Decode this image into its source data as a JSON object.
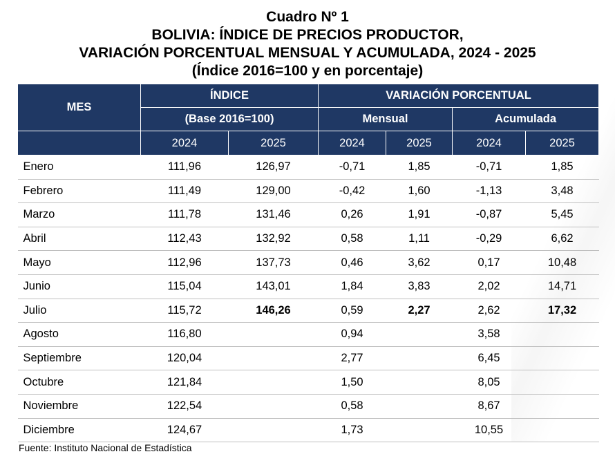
{
  "title": {
    "line1": "Cuadro Nº 1",
    "line2": "BOLIVIA: ÍNDICE DE PRECIOS PRODUCTOR,",
    "line3": "VARIACIÓN PORCENTUAL MENSUAL Y ACUMULADA, 2024 - 2025",
    "line4": "(Índice 2016=100 y en porcentaje)"
  },
  "header": {
    "mes": "MES",
    "indice": "ÍNDICE",
    "base": "(Base 2016=100)",
    "variacion": "VARIACIÓN PORCENTUAL",
    "mensual": "Mensual",
    "acumulada": "Acumulada",
    "years": [
      "2024",
      "2025",
      "2024",
      "2025",
      "2024",
      "2025"
    ]
  },
  "rows": [
    {
      "mes": "Enero",
      "i2024": "111,96",
      "i2025": "126,97",
      "m2024": "-0,71",
      "m2025": "1,85",
      "a2024": "-0,71",
      "a2025": "1,85"
    },
    {
      "mes": "Febrero",
      "i2024": "111,49",
      "i2025": "129,00",
      "m2024": "-0,42",
      "m2025": "1,60",
      "a2024": "-1,13",
      "a2025": "3,48"
    },
    {
      "mes": "Marzo",
      "i2024": "111,78",
      "i2025": "131,46",
      "m2024": "0,26",
      "m2025": "1,91",
      "a2024": "-0,87",
      "a2025": "5,45"
    },
    {
      "mes": "Abril",
      "i2024": "112,43",
      "i2025": "132,92",
      "m2024": "0,58",
      "m2025": "1,11",
      "a2024": "-0,29",
      "a2025": "6,62"
    },
    {
      "mes": "Mayo",
      "i2024": "112,96",
      "i2025": "137,73",
      "m2024": "0,46",
      "m2025": "3,62",
      "a2024": "0,17",
      "a2025": "10,48"
    },
    {
      "mes": "Junio",
      "i2024": "115,04",
      "i2025": "143,01",
      "m2024": "1,84",
      "m2025": "3,83",
      "a2024": "2,02",
      "a2025": "14,71"
    },
    {
      "mes": "Julio",
      "i2024": "115,72",
      "i2025": "146,26",
      "m2024": "0,59",
      "m2025": "2,27",
      "a2024": "2,62",
      "a2025": "17,32"
    },
    {
      "mes": "Agosto",
      "i2024": "116,80",
      "i2025": "",
      "m2024": "0,94",
      "m2025": "",
      "a2024": "3,58",
      "a2025": ""
    },
    {
      "mes": "Septiembre",
      "i2024": "120,04",
      "i2025": "",
      "m2024": "2,77",
      "m2025": "",
      "a2024": "6,45",
      "a2025": ""
    },
    {
      "mes": "Octubre",
      "i2024": "121,84",
      "i2025": "",
      "m2024": "1,50",
      "m2025": "",
      "a2024": "8,05",
      "a2025": ""
    },
    {
      "mes": "Noviembre",
      "i2024": "122,54",
      "i2025": "",
      "m2024": "0,58",
      "m2025": "",
      "a2024": "8,67",
      "a2025": ""
    },
    {
      "mes": "Diciembre",
      "i2024": "124,67",
      "i2025": "",
      "m2024": "1,73",
      "m2025": "",
      "a2024": "10,55",
      "a2025": ""
    }
  ],
  "bold_row_index": 6,
  "footer": {
    "source": "Fuente: Instituto Nacional de Estadística"
  },
  "colors": {
    "header_bg": "#1f3864",
    "header_text": "#ffffff",
    "row_border": "#bfbfbf"
  }
}
